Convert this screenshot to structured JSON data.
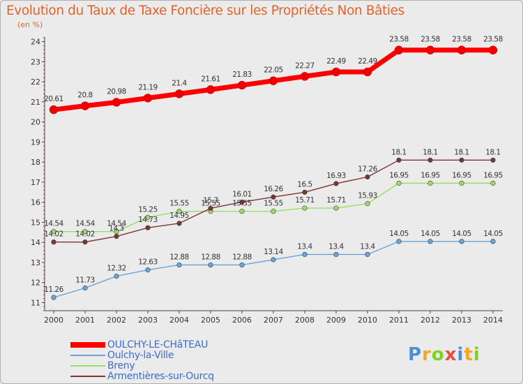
{
  "chart_data": {
    "type": "line",
    "title": "Evolution du Taux de Taxe Foncière sur les Propriétés Non Bâties",
    "subtitle": "(en %)",
    "categories": [
      "2000",
      "2001",
      "2002",
      "2003",
      "2004",
      "2005",
      "2006",
      "2007",
      "2008",
      "2009",
      "2010",
      "2011",
      "2012",
      "2013",
      "2014"
    ],
    "yticks": [
      11,
      12,
      13,
      14,
      15,
      16,
      17,
      18,
      19,
      20,
      21,
      22,
      23,
      24
    ],
    "ylim": [
      10.6,
      24.3
    ],
    "grid": false,
    "legend_position": "bottom-left",
    "series": [
      {
        "name": "OULCHY-LE-CHâTEAU",
        "color": "#ff0000",
        "values": [
          20.61,
          20.8,
          20.98,
          21.19,
          21.4,
          21.61,
          21.83,
          22.05,
          22.27,
          22.49,
          22.49,
          23.58,
          23.58,
          23.58,
          23.58
        ],
        "labels": [
          "20.61",
          "20.8",
          "20.98",
          "21.19",
          "21.4",
          "21.61",
          "21.83",
          "22.05",
          "22.27",
          "22.49",
          "22.49",
          "23.58",
          "23.58",
          "23.58",
          "23.58"
        ]
      },
      {
        "name": "Oulchy-la-Ville",
        "color": "#6ba3d8",
        "values": [
          11.26,
          11.73,
          12.32,
          12.63,
          12.88,
          12.88,
          12.88,
          13.14,
          13.4,
          13.4,
          13.4,
          14.05,
          14.05,
          14.05,
          14.05
        ],
        "labels": [
          "11.26",
          "11.73",
          "12.32",
          "12.63",
          "12.88",
          "12.88",
          "12.88",
          "13.14",
          "13.4",
          "13.4",
          "13.4",
          "14.05",
          "14.05",
          "14.05",
          "14.05"
        ]
      },
      {
        "name": "Breny",
        "color": "#99dd66",
        "values": [
          14.54,
          14.54,
          14.54,
          15.25,
          15.55,
          15.55,
          15.55,
          15.55,
          15.71,
          15.71,
          15.93,
          16.95,
          16.95,
          16.95,
          16.95
        ],
        "labels": [
          "14.54",
          "14.54",
          "14.54",
          "15.25",
          "15.55",
          "15.55",
          "15.55",
          "15.55",
          "15.71",
          "15.71",
          "15.93",
          "16.95",
          "16.95",
          "16.95",
          "16.95"
        ]
      },
      {
        "name": "Armentières-sur-Ourcq",
        "color": "#7a3535",
        "values": [
          14.02,
          14.02,
          14.3,
          14.73,
          14.95,
          15.7,
          16.01,
          16.26,
          16.5,
          16.93,
          17.26,
          18.1,
          18.1,
          18.1,
          18.1
        ],
        "labels": [
          "14.02",
          "14.02",
          "14.3",
          "14.73",
          "14.95",
          "15.7",
          "16.01",
          "16.26",
          "16.5",
          "16.93",
          "17.26",
          "18.1",
          "18.1",
          "18.1",
          "18.1"
        ]
      }
    ]
  },
  "logo": {
    "letters": [
      "P",
      "r",
      "o",
      "x",
      "i",
      "t",
      "i"
    ],
    "colors": [
      "#4a90d9",
      "#f5a623",
      "#7ed321",
      "#e94e3c",
      "#4a90d9",
      "#f5a623",
      "#7ed321"
    ]
  }
}
